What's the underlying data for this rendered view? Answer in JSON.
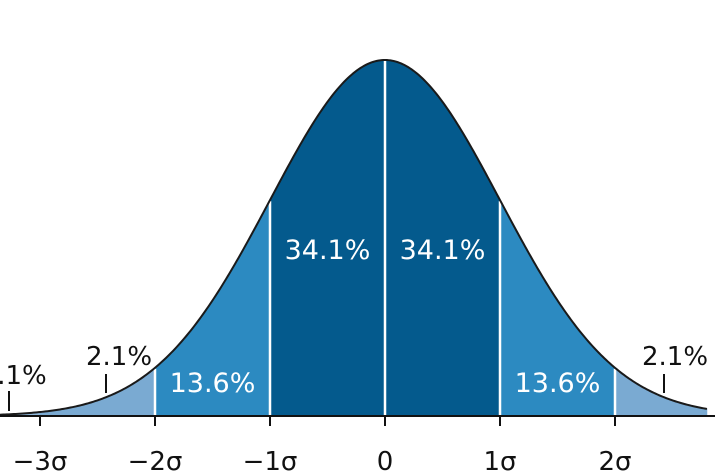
{
  "chart_data": {
    "type": "area",
    "title": "",
    "xlabel": "",
    "ylabel": "",
    "distribution": "standard-normal",
    "xlim": [
      -3.35,
      2.8
    ],
    "ylim": [
      0,
      0.43
    ],
    "grid": false,
    "ticks": [
      {
        "value": -3,
        "label": "−3σ"
      },
      {
        "value": -2,
        "label": "−2σ"
      },
      {
        "value": -1,
        "label": "−1σ"
      },
      {
        "value": 0,
        "label": "0"
      },
      {
        "value": 1,
        "label": "1σ"
      },
      {
        "value": 2,
        "label": "2σ"
      }
    ],
    "regions": [
      {
        "from": -3.35,
        "to": -3,
        "value_label": "",
        "color": "#8fb8dc"
      },
      {
        "from": -3,
        "to": -2,
        "value_label": "2.1%",
        "color": "#7aaad2"
      },
      {
        "from": -2,
        "to": -1,
        "value_label": "13.6%",
        "color": "#2c8ac1"
      },
      {
        "from": -1,
        "to": 0,
        "value_label": "34.1%",
        "color": "#045a8d"
      },
      {
        "from": 0,
        "to": 1,
        "value_label": "34.1%",
        "color": "#045a8d"
      },
      {
        "from": 1,
        "to": 2,
        "value_label": "13.6%",
        "color": "#2c8ac1"
      },
      {
        "from": 2,
        "to": 2.8,
        "value_label": "",
        "color": "#7aaad2"
      }
    ],
    "outer_labels": [
      {
        "text": "2.1%",
        "at": -2.5
      },
      {
        "text": "2.1%",
        "at": 2.5
      },
      {
        "text": ".1%",
        "at": -3.2
      }
    ],
    "colors": {
      "curve": "#1a1a1a",
      "divider": "#ffffff",
      "axis": "#111111",
      "inner_text": "#ffffff",
      "outer_text": "#111111"
    }
  }
}
